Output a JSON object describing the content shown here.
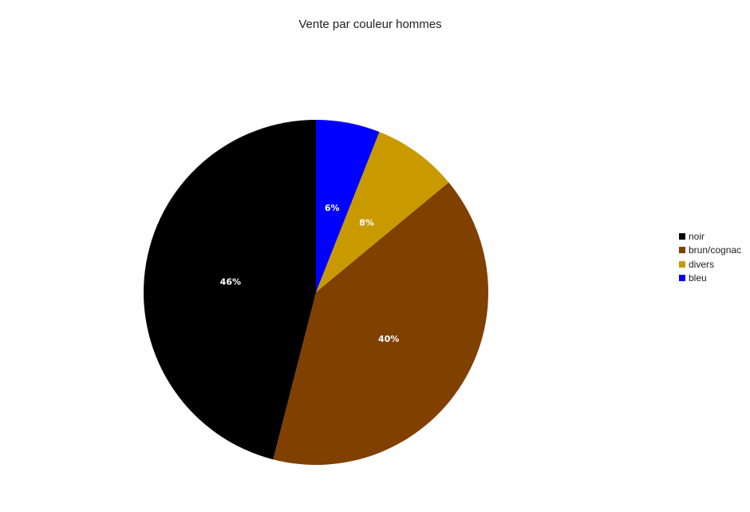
{
  "chart_data": {
    "type": "pie",
    "title": "Vente par couleur hommes",
    "categories": [
      "noir",
      "brun/cognac",
      "divers",
      "bleu"
    ],
    "values": [
      46,
      40,
      8,
      6
    ],
    "labels": [
      "46%",
      "40%",
      "8%",
      "6%"
    ],
    "colors": [
      "#000000",
      "#804000",
      "#c89a00",
      "#0000ff"
    ],
    "legend_position": "right"
  }
}
